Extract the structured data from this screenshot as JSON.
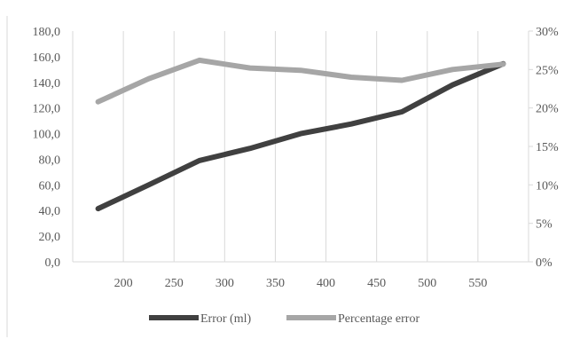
{
  "chart_data": {
    "type": "line",
    "x": [
      150,
      200,
      250,
      300,
      350,
      400,
      450,
      500,
      550
    ],
    "x_tick_labels": [
      "",
      "200",
      "250",
      "300",
      "350",
      "400",
      "450",
      "500",
      "550"
    ],
    "y_left": {
      "range": [
        0,
        180
      ],
      "ticks": [
        "0,0",
        "20,0",
        "40,0",
        "60,0",
        "80,0",
        "100,0",
        "120,0",
        "140,0",
        "160,0",
        "180,0"
      ]
    },
    "y_right": {
      "range": [
        0,
        30
      ],
      "ticks": [
        "0%",
        "5%",
        "10%",
        "15%",
        "20%",
        "25%",
        "30%"
      ]
    },
    "series": [
      {
        "name": "Error (ml)",
        "axis": "left",
        "color": "#404040",
        "values": [
          41.5,
          60,
          79,
          88.5,
          100,
          107.5,
          117,
          138,
          154.5
        ]
      },
      {
        "name": "Percentage error",
        "axis": "right",
        "color": "#a6a6a6",
        "values": [
          20.8,
          23.8,
          26.2,
          25.2,
          24.9,
          24.0,
          23.6,
          25.0,
          25.7
        ]
      }
    ],
    "grid": "vertical",
    "legend": "bottom"
  }
}
